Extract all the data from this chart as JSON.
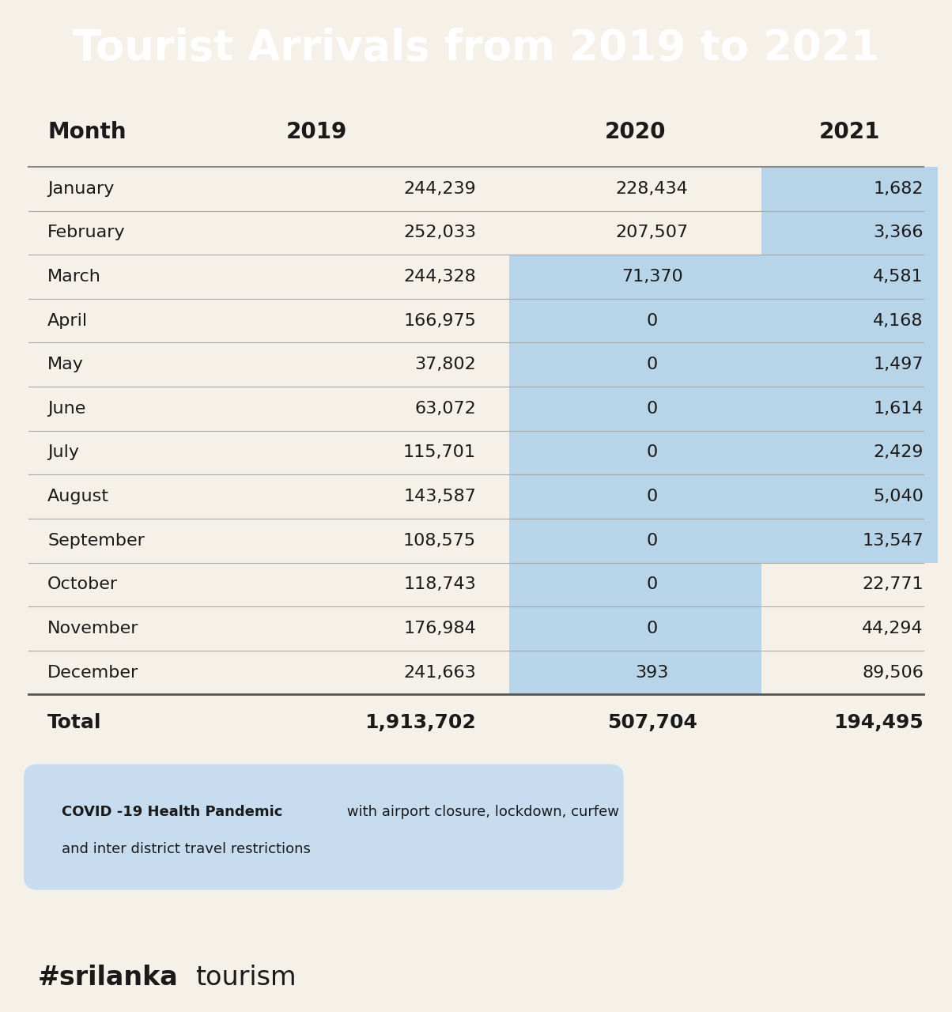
{
  "title": "Tourist Arrivals from 2019 to 2021",
  "header_bg": "#D93025",
  "footer_bg": "#E8821A",
  "body_bg": "#F5F0E8",
  "col_headers": [
    "Month",
    "2019",
    "2020",
    "2021"
  ],
  "months": [
    "January",
    "February",
    "March",
    "April",
    "May",
    "June",
    "July",
    "August",
    "September",
    "October",
    "November",
    "December",
    "Total"
  ],
  "data_2019": [
    "244,239",
    "252,033",
    "244,328",
    "166,975",
    "37,802",
    "63,072",
    "115,701",
    "143,587",
    "108,575",
    "118,743",
    "176,984",
    "241,663",
    "1,913,702"
  ],
  "data_2020": [
    "228,434",
    "207,507",
    "71,370",
    "0",
    "0",
    "0",
    "0",
    "0",
    "0",
    "0",
    "0",
    "393",
    "507,704"
  ],
  "data_2021": [
    "1,682",
    "3,366",
    "4,581",
    "4,168",
    "1,497",
    "1,614",
    "2,429",
    "5,040",
    "13,547",
    "22,771",
    "44,294",
    "89,506",
    "194,495"
  ],
  "blue_color": "#B8D4E8",
  "line_color": "#AAAAAA",
  "note_bold": "COVID -19 Health Pandemic",
  "note_regular": "with airport closure, lockdown, curfew\nand inter district travel restrictions",
  "note_bg": "#C8DCF0",
  "blue_2020_rows": [
    2,
    3,
    4,
    5,
    6,
    7,
    8,
    9,
    10,
    11
  ],
  "blue_2021_rows": [
    0,
    1,
    2,
    3,
    4,
    5,
    6,
    7,
    8
  ]
}
